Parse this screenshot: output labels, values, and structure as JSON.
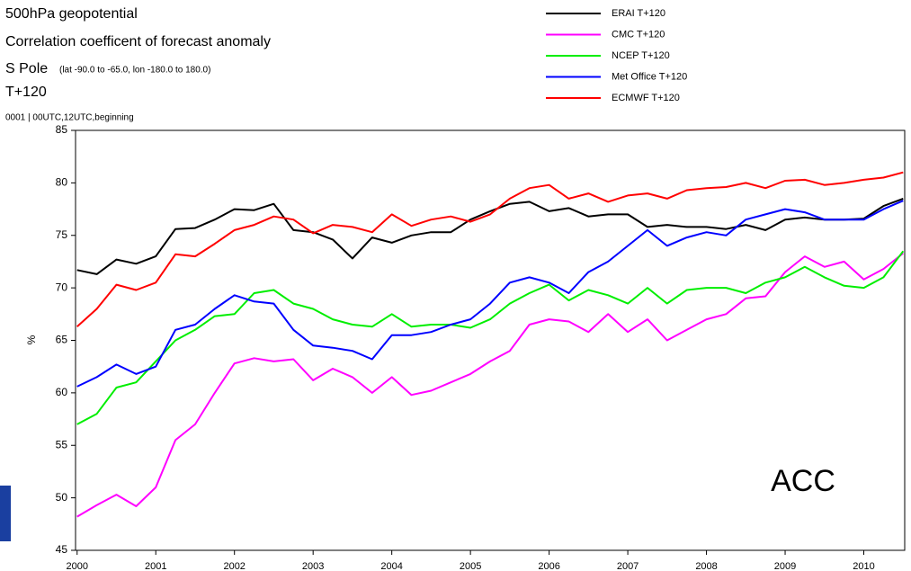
{
  "chart_data": {
    "type": "line",
    "title": "500hPa geopotential",
    "subtitle": "Correlation coefficent of forecast anomaly",
    "region": "S Pole",
    "region_detail": "(lat -90.0 to -65.0, lon -180.0 to 180.0)",
    "lead_time": "T+120",
    "note": "0001 | 00UTC,12UTC,beginning",
    "y_label": "%",
    "annotation": "ACC",
    "x": [
      2000,
      2000.25,
      2000.5,
      2000.75,
      2001,
      2001.25,
      2001.5,
      2001.75,
      2002,
      2002.25,
      2002.5,
      2002.75,
      2003,
      2003.25,
      2003.5,
      2003.75,
      2004,
      2004.25,
      2004.5,
      2004.75,
      2005,
      2005.25,
      2005.5,
      2005.75,
      2006,
      2006.25,
      2006.5,
      2006.75,
      2007,
      2007.25,
      2007.5,
      2007.75,
      2008,
      2008.25,
      2008.5,
      2008.75,
      2009,
      2009.25,
      2009.5,
      2009.75,
      2010,
      2010.25,
      2010.5
    ],
    "xlim": [
      1999.98,
      2010.52
    ],
    "xticks": [
      2000,
      2001,
      2002,
      2003,
      2004,
      2005,
      2006,
      2007,
      2008,
      2009,
      2010
    ],
    "ylim": [
      45,
      85
    ],
    "yticks": [
      45,
      50,
      55,
      60,
      65,
      70,
      75,
      80,
      85
    ],
    "series": [
      {
        "name": "ERAI T+120",
        "color": "#000000",
        "values": [
          71.7,
          71.3,
          72.7,
          72.3,
          73.0,
          75.6,
          75.7,
          76.5,
          77.5,
          77.4,
          78.0,
          75.5,
          75.3,
          74.6,
          72.8,
          74.8,
          74.3,
          75.0,
          75.3,
          75.3,
          76.5,
          77.3,
          78.0,
          78.2,
          77.3,
          77.6,
          76.8,
          77.0,
          77.0,
          75.8,
          76.0,
          75.8,
          75.8,
          75.6,
          76.0,
          75.5,
          76.5,
          76.7,
          76.5,
          76.5,
          76.6,
          77.8,
          78.5
        ]
      },
      {
        "name": "CMC T+120",
        "color": "#ff00ff",
        "values": [
          48.2,
          49.3,
          50.3,
          49.2,
          51.0,
          55.5,
          57.0,
          60.0,
          62.8,
          63.3,
          63.0,
          63.2,
          61.2,
          62.3,
          61.5,
          60.0,
          61.5,
          59.8,
          60.2,
          61.0,
          61.8,
          63.0,
          64.0,
          66.5,
          67.0,
          66.8,
          65.8,
          67.5,
          65.8,
          67.0,
          65.0,
          66.0,
          67.0,
          67.5,
          69.0,
          69.2,
          71.5,
          73.0,
          72.0,
          72.5,
          70.8,
          71.8,
          73.3
        ]
      },
      {
        "name": "NCEP T+120",
        "color": "#00ee00",
        "values": [
          57.0,
          58.0,
          60.5,
          61.0,
          63.0,
          65.0,
          66.0,
          67.3,
          67.5,
          69.5,
          69.8,
          68.5,
          68.0,
          67.0,
          66.5,
          66.3,
          67.5,
          66.3,
          66.5,
          66.5,
          66.2,
          67.0,
          68.5,
          69.5,
          70.3,
          68.8,
          69.8,
          69.3,
          68.5,
          70.0,
          68.5,
          69.8,
          70.0,
          70.0,
          69.5,
          70.5,
          71.0,
          72.0,
          71.0,
          70.2,
          70.0,
          71.0,
          73.5
        ]
      },
      {
        "name": "Met Office T+120",
        "color": "#0000ff",
        "values": [
          60.6,
          61.5,
          62.7,
          61.8,
          62.5,
          66.0,
          66.5,
          68.0,
          69.3,
          68.7,
          68.5,
          66.0,
          64.5,
          64.3,
          64.0,
          63.2,
          65.5,
          65.5,
          65.8,
          66.5,
          67.0,
          68.5,
          70.5,
          71.0,
          70.5,
          69.5,
          71.5,
          72.5,
          74.0,
          75.5,
          74.0,
          74.8,
          75.3,
          75.0,
          76.5,
          77.0,
          77.5,
          77.2,
          76.5,
          76.5,
          76.5,
          77.5,
          78.3
        ]
      },
      {
        "name": "ECMWF T+120",
        "color": "#ff0000",
        "values": [
          66.3,
          68.0,
          70.3,
          69.8,
          70.5,
          73.2,
          73.0,
          74.2,
          75.5,
          76.0,
          76.8,
          76.5,
          75.2,
          76.0,
          75.8,
          75.3,
          77.0,
          75.9,
          76.5,
          76.8,
          76.3,
          77.0,
          78.5,
          79.5,
          79.8,
          78.5,
          79.0,
          78.2,
          78.8,
          79.0,
          78.5,
          79.3,
          79.5,
          79.6,
          80.0,
          79.5,
          80.2,
          80.3,
          79.8,
          80.0,
          80.3,
          80.5,
          81.0
        ]
      }
    ]
  }
}
